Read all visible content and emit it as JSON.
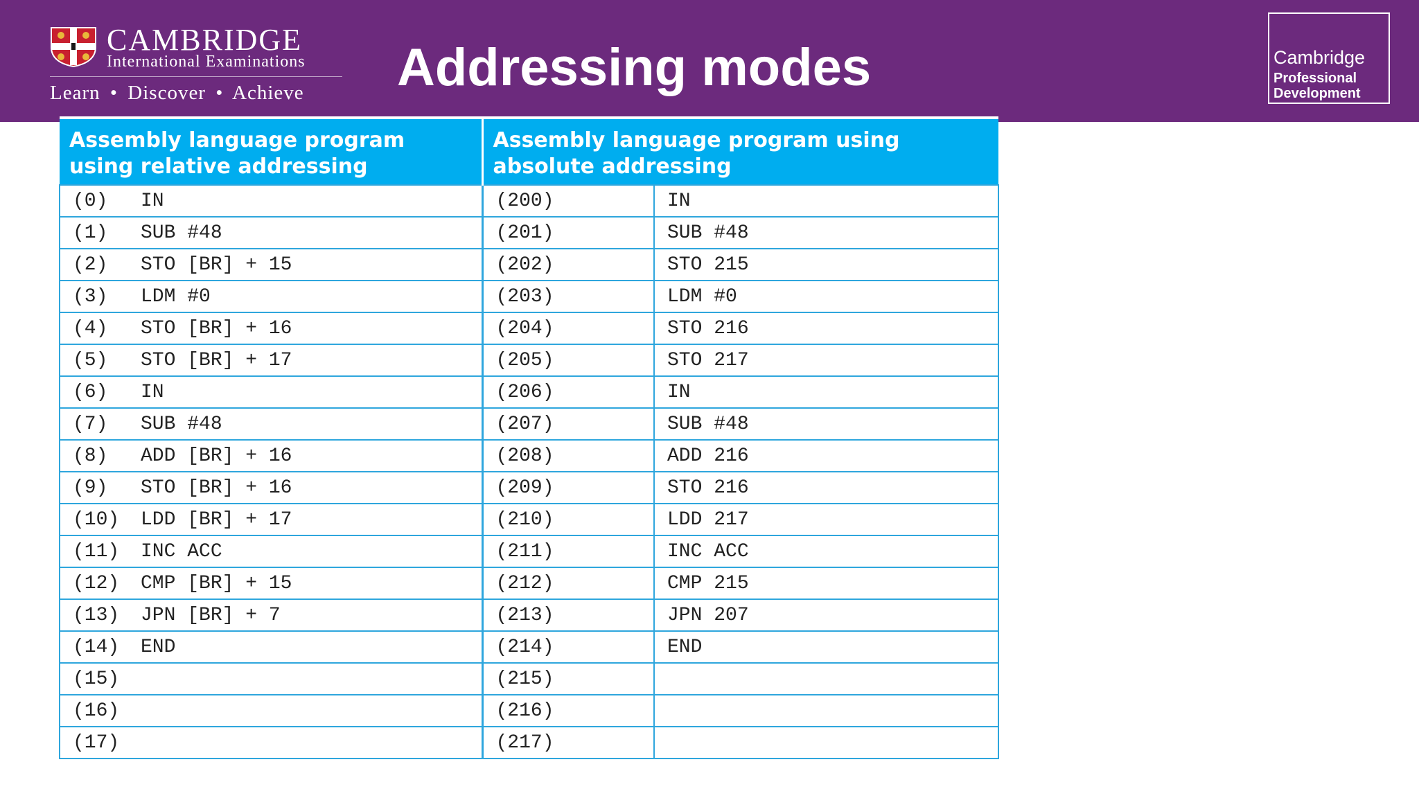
{
  "header": {
    "logo": {
      "name": "CAMBRIDGE",
      "subtitle": "International Examinations",
      "tagline": [
        "Learn",
        "Discover",
        "Achieve"
      ],
      "icon": "cambridge-shield-icon"
    },
    "title": "Addressing modes",
    "cpd": {
      "line1": "Cambridge",
      "line2": "Professional",
      "line3": "Development"
    }
  },
  "colors": {
    "header_bg": "#6c2a7d",
    "table_header_bg": "#00adef",
    "table_border": "#2ea6dd"
  },
  "table": {
    "headers": [
      "Assembly language program using relative addressing",
      "Assembly language program using absolute addressing"
    ],
    "rows": [
      {
        "rel_addr": "(0)",
        "rel_instr": "IN",
        "abs_addr": "(200)",
        "abs_instr": "IN"
      },
      {
        "rel_addr": "(1)",
        "rel_instr": "SUB #48",
        "abs_addr": "(201)",
        "abs_instr": "SUB #48"
      },
      {
        "rel_addr": "(2)",
        "rel_instr": "STO [BR] + 15",
        "abs_addr": "(202)",
        "abs_instr": "STO 215"
      },
      {
        "rel_addr": "(3)",
        "rel_instr": "LDM #0",
        "abs_addr": "(203)",
        "abs_instr": "LDM #0"
      },
      {
        "rel_addr": "(4)",
        "rel_instr": "STO [BR] + 16",
        "abs_addr": "(204)",
        "abs_instr": "STO 216"
      },
      {
        "rel_addr": "(5)",
        "rel_instr": "STO [BR] + 17",
        "abs_addr": "(205)",
        "abs_instr": "STO 217"
      },
      {
        "rel_addr": "(6)",
        "rel_instr": "IN",
        "abs_addr": "(206)",
        "abs_instr": "IN"
      },
      {
        "rel_addr": "(7)",
        "rel_instr": "SUB #48",
        "abs_addr": "(207)",
        "abs_instr": "SUB #48"
      },
      {
        "rel_addr": "(8)",
        "rel_instr": "ADD [BR] + 16",
        "abs_addr": "(208)",
        "abs_instr": "ADD 216"
      },
      {
        "rel_addr": "(9)",
        "rel_instr": "STO [BR] + 16",
        "abs_addr": "(209)",
        "abs_instr": "STO 216"
      },
      {
        "rel_addr": "(10)",
        "rel_instr": "LDD [BR] + 17",
        "abs_addr": "(210)",
        "abs_instr": "LDD 217"
      },
      {
        "rel_addr": "(11)",
        "rel_instr": "INC ACC",
        "abs_addr": "(211)",
        "abs_instr": "INC ACC"
      },
      {
        "rel_addr": "(12)",
        "rel_instr": "CMP [BR] + 15",
        "abs_addr": "(212)",
        "abs_instr": "CMP 215"
      },
      {
        "rel_addr": "(13)",
        "rel_instr": "JPN [BR] + 7",
        "abs_addr": "(213)",
        "abs_instr": "JPN 207"
      },
      {
        "rel_addr": "(14)",
        "rel_instr": "END",
        "abs_addr": "(214)",
        "abs_instr": "END"
      },
      {
        "rel_addr": "(15)",
        "rel_instr": "",
        "abs_addr": "(215)",
        "abs_instr": ""
      },
      {
        "rel_addr": "(16)",
        "rel_instr": "",
        "abs_addr": "(216)",
        "abs_instr": ""
      },
      {
        "rel_addr": "(17)",
        "rel_instr": "",
        "abs_addr": "(217)",
        "abs_instr": ""
      }
    ]
  }
}
